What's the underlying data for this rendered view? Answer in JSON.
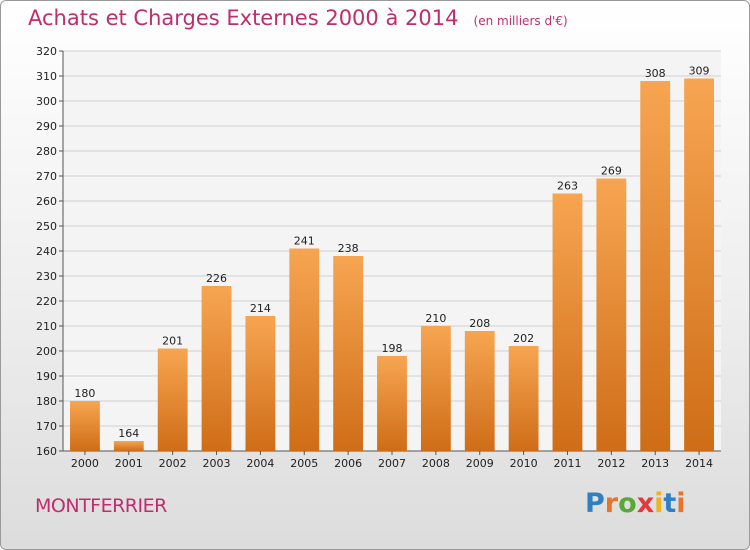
{
  "title": "Achats et Charges Externes 2000 à 2014",
  "subtitle": "(en milliers d'€)",
  "commune": "MONTFERRIER",
  "logo": {
    "letters": [
      "P",
      "r",
      "o",
      "x",
      "i",
      "t",
      "i"
    ],
    "colors": [
      "#2f7fc1",
      "#e8732a",
      "#5aa839",
      "#e23a3a",
      "#f2b21f",
      "#2f7fc1",
      "#e8732a"
    ]
  },
  "colors": {
    "bar_top": "#f7a552",
    "bar_bottom": "#cf6d17",
    "title": "#c02d6e"
  },
  "chart_data": {
    "type": "bar",
    "categories": [
      "2000",
      "2001",
      "2002",
      "2003",
      "2004",
      "2005",
      "2006",
      "2007",
      "2008",
      "2009",
      "2010",
      "2011",
      "2012",
      "2013",
      "2014"
    ],
    "values": [
      180,
      164,
      201,
      226,
      214,
      241,
      238,
      198,
      210,
      208,
      202,
      263,
      269,
      308,
      309
    ],
    "ylim": [
      160,
      320
    ],
    "yticks": [
      160,
      170,
      180,
      190,
      200,
      210,
      220,
      230,
      240,
      250,
      260,
      270,
      280,
      290,
      300,
      310,
      320
    ],
    "grid": true,
    "legend": "none"
  }
}
